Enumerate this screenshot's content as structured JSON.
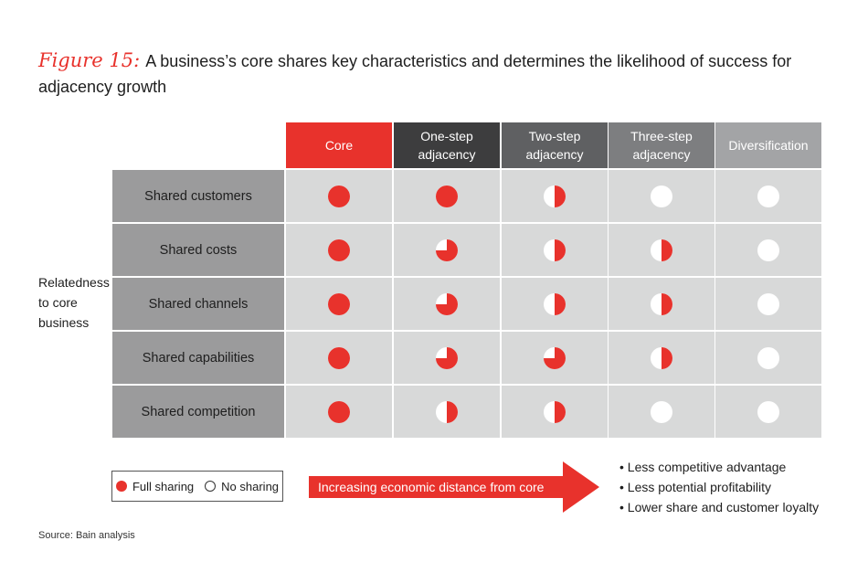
{
  "title": {
    "figure_label": "Figure 15:",
    "text": "A business’s core shares key characteristics and determines the likelihood of success for adjacency growth"
  },
  "colors": {
    "red": "#e8322c",
    "dark_header": "#3d3d3e",
    "mid_header": "#5f6062",
    "light_header": "#7d7e80",
    "lightest_header": "#a3a4a6",
    "row_label_bg": "#9b9b9c",
    "cell_bg": "#d8d9d9"
  },
  "chart_data": {
    "type": "table",
    "columns": [
      "Core",
      "One-step adjacency",
      "Two-step adjacency",
      "Three-step adjacency",
      "Diversification"
    ],
    "rows": [
      "Shared customers",
      "Shared costs",
      "Shared channels",
      "Shared capabilities",
      "Shared competition"
    ],
    "values": [
      [
        1,
        1,
        0.5,
        0,
        0
      ],
      [
        1,
        0.75,
        0.5,
        0.5,
        0
      ],
      [
        1,
        0.75,
        0.5,
        0.5,
        0
      ],
      [
        1,
        0.75,
        0.75,
        0.5,
        0
      ],
      [
        1,
        0.5,
        0.5,
        0,
        0
      ]
    ],
    "value_meaning": "fraction of circle filled red (1 = full sharing, 0 = no sharing)",
    "row_axis_label": "Relatedness to core business"
  },
  "legend": {
    "full_label": "Full sharing",
    "none_label": "No sharing"
  },
  "arrow": {
    "label": "Increasing economic distance from core"
  },
  "bullets": [
    "Less competitive advantage",
    "Less potential profitability",
    "Lower share and customer loyalty"
  ],
  "source": "Source: Bain analysis"
}
